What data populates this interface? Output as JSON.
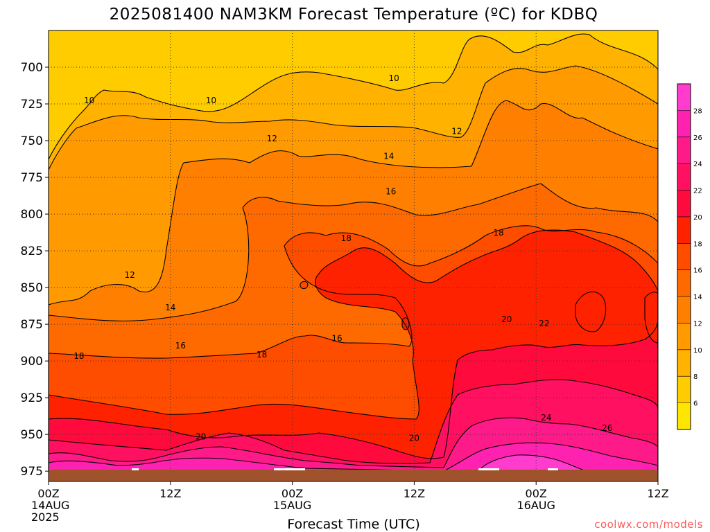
{
  "chart_data": {
    "type": "heatmap",
    "title": "2025081400 NAM3KM Forecast Temperature (ºC) for KDBQ",
    "xlabel": "Forecast Time (UTC)",
    "credit": "coolwx.com/models",
    "x_ticks": [
      {
        "hour": 0,
        "labels": [
          "00Z",
          "14AUG",
          "2025"
        ]
      },
      {
        "hour": 12,
        "labels": [
          "12Z"
        ]
      },
      {
        "hour": 24,
        "labels": [
          "00Z",
          "15AUG"
        ]
      },
      {
        "hour": 36,
        "labels": [
          "12Z"
        ]
      },
      {
        "hour": 48,
        "labels": [
          "00Z",
          "16AUG"
        ]
      },
      {
        "hour": 60,
        "labels": [
          "12Z"
        ]
      }
    ],
    "xlim": [
      0,
      60
    ],
    "y_ticks": [
      700,
      725,
      750,
      775,
      800,
      825,
      850,
      875,
      900,
      925,
      950,
      975
    ],
    "ylim": [
      675,
      982
    ],
    "yunits": "hPa",
    "colorbar": {
      "levels": [
        6,
        8,
        10,
        12,
        14,
        16,
        18,
        20,
        22,
        24,
        26,
        28
      ],
      "colors": [
        "#ffe600",
        "#ffcc00",
        "#ffb300",
        "#ff9a00",
        "#ff8000",
        "#ff6a00",
        "#ff4d00",
        "#ff2200",
        "#ff0a3c",
        "#ff1060",
        "#ff1a8a",
        "#ff22b0",
        "#ff3ccd"
      ]
    },
    "contour_labels": [
      {
        "value": 10,
        "hour": 4,
        "level": 724
      },
      {
        "value": 10,
        "hour": 16,
        "level": 724
      },
      {
        "value": 10,
        "hour": 34,
        "level": 709
      },
      {
        "value": 12,
        "hour": 22,
        "level": 750
      },
      {
        "value": 12,
        "hour": 40.2,
        "level": 745
      },
      {
        "value": 12,
        "hour": 8,
        "level": 843
      },
      {
        "value": 14,
        "hour": 33.5,
        "level": 762
      },
      {
        "value": 14,
        "hour": 12,
        "level": 865
      },
      {
        "value": 16,
        "hour": 33.7,
        "level": 786
      },
      {
        "value": 16,
        "hour": 13,
        "level": 891
      },
      {
        "value": 16,
        "hour": 28.4,
        "level": 886
      },
      {
        "value": 18,
        "hour": 3,
        "level": 898
      },
      {
        "value": 18,
        "hour": 21,
        "level": 897
      },
      {
        "value": 18,
        "hour": 29.3,
        "level": 818
      },
      {
        "value": 18,
        "hour": 44.3,
        "level": 814
      },
      {
        "value": 20,
        "hour": 15,
        "level": 953
      },
      {
        "value": 20,
        "hour": 36,
        "level": 954
      },
      {
        "value": 20,
        "hour": 45.1,
        "level": 873
      },
      {
        "value": 22,
        "hour": 48.8,
        "level": 876
      },
      {
        "value": 24,
        "hour": 49,
        "level": 940
      },
      {
        "value": 26,
        "hour": 55,
        "level": 947
      }
    ],
    "surface": "below ground"
  }
}
